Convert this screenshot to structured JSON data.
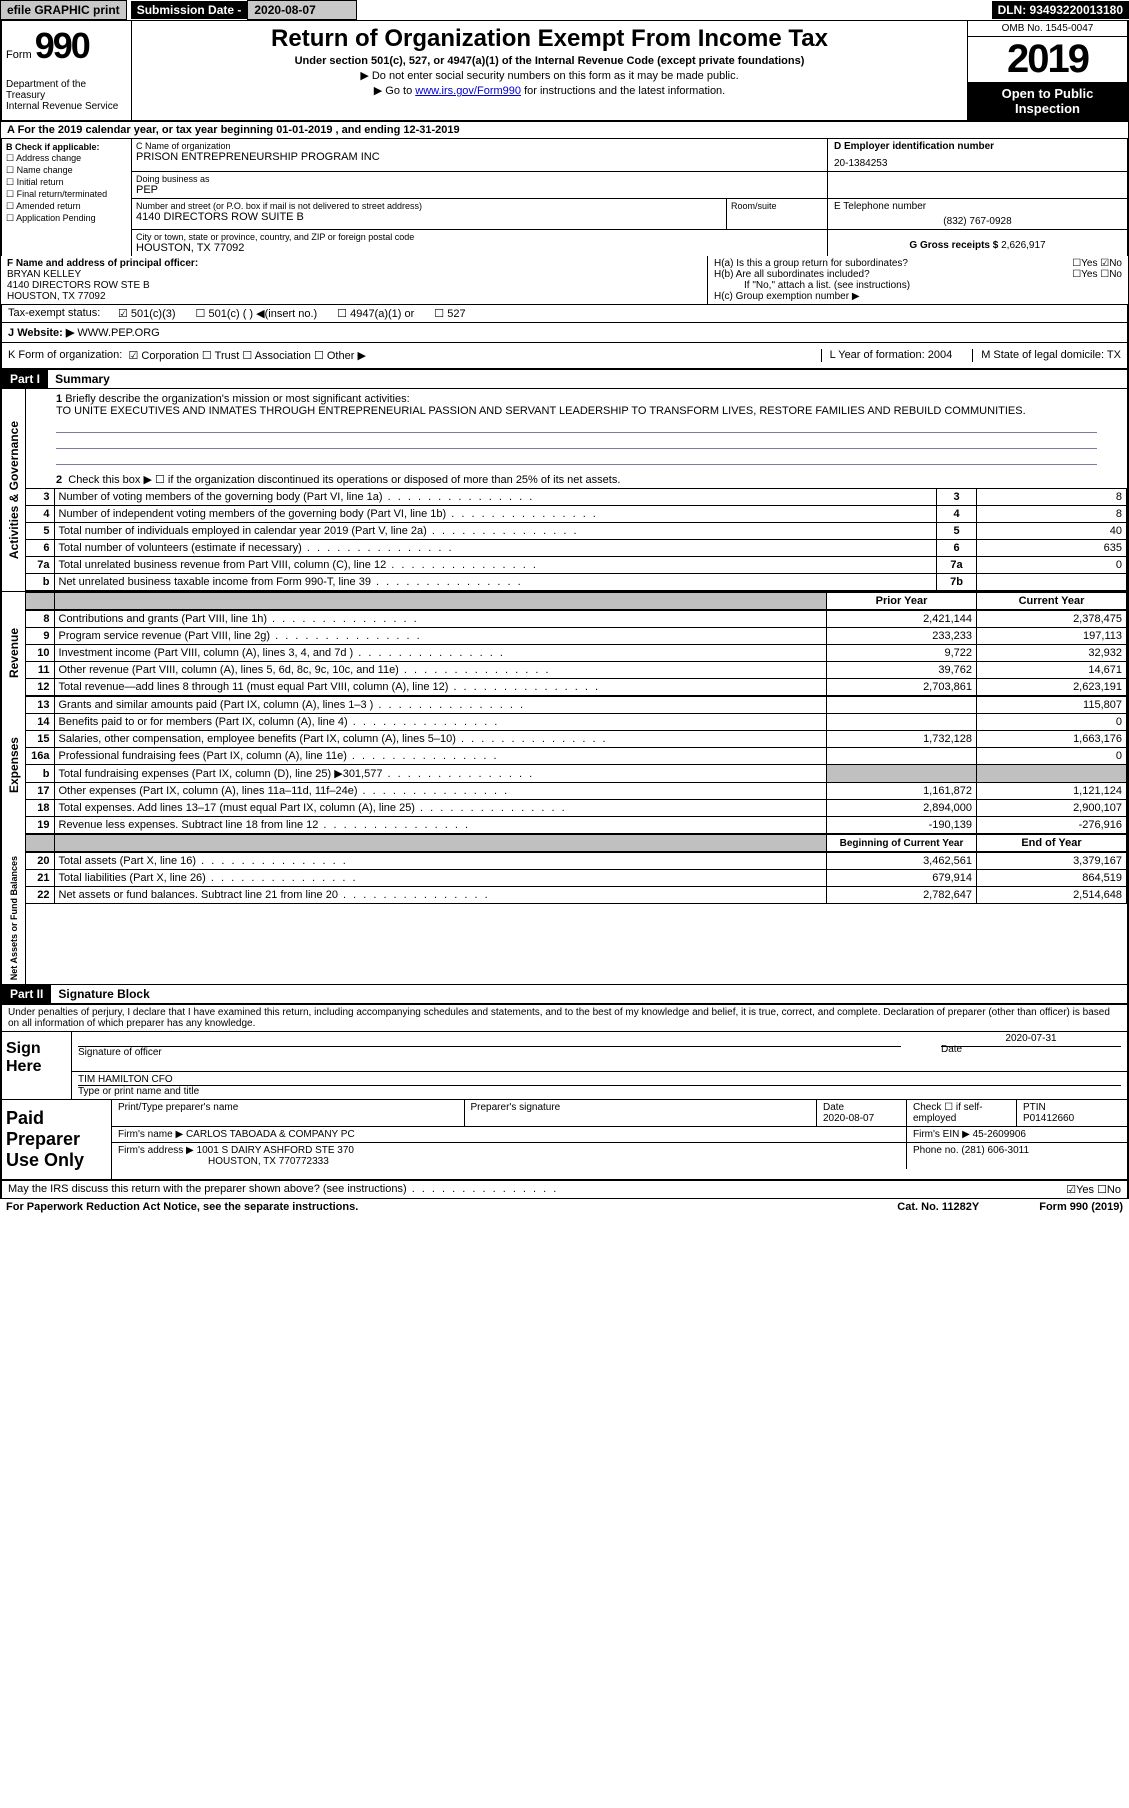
{
  "topbar": {
    "efile": "efile GRAPHIC print",
    "subdate_label": "Submission Date - ",
    "subdate": "2020-08-07",
    "dln": "DLN: 93493220013180"
  },
  "header": {
    "form_prefix": "Form",
    "form_num": "990",
    "dept1": "Department of the Treasury",
    "dept2": "Internal Revenue Service",
    "title": "Return of Organization Exempt From Income Tax",
    "sub1": "Under section 501(c), 527, or 4947(a)(1) of the Internal Revenue Code (except private foundations)",
    "sub2": "▶ Do not enter social security numbers on this form as it may be made public.",
    "sub3_pre": "▶ Go to ",
    "sub3_link": "www.irs.gov/Form990",
    "sub3_post": " for instructions and the latest information.",
    "omb": "OMB No. 1545-0047",
    "year": "2019",
    "inspect1": "Open to Public",
    "inspect2": "Inspection"
  },
  "row_a": "A For the 2019 calendar year, or tax year beginning 01-01-2019    , and ending 12-31-2019",
  "b": {
    "label": "B Check if applicable:",
    "opts": [
      "☐ Address change",
      "☐ Name change",
      "☐ Initial return",
      "☐ Final return/terminated",
      "☐ Amended return",
      "☐ Application Pending"
    ]
  },
  "c": {
    "name_label": "C Name of organization",
    "name": "PRISON ENTREPRENEURSHIP PROGRAM INC",
    "dba_label": "Doing business as",
    "dba": "PEP",
    "addr_label": "Number and street (or P.O. box if mail is not delivered to street address)",
    "addr": "4140 DIRECTORS ROW SUITE B",
    "room_label": "Room/suite",
    "city_label": "City or town, state or province, country, and ZIP or foreign postal code",
    "city": "HOUSTON, TX  77092"
  },
  "d": {
    "label": "D Employer identification number",
    "val": "20-1384253"
  },
  "e": {
    "label": "E Telephone number",
    "val": "(832) 767-0928"
  },
  "g": {
    "label": "G Gross receipts $",
    "val": "2,626,917"
  },
  "f": {
    "label": "F  Name and address of principal officer:",
    "name": "BRYAN KELLEY",
    "addr1": "4140 DIRECTORS ROW STE B",
    "addr2": "HOUSTON, TX  77092"
  },
  "h": {
    "a": "H(a)  Is this a group return for subordinates?",
    "a_yn": "☐Yes ☑No",
    "b": "H(b)  Are all subordinates included?",
    "b_yn": "☐Yes  ☐No",
    "note": "If \"No,\" attach a list. (see instructions)",
    "c": "H(c)  Group exemption number ▶"
  },
  "tax_status": {
    "label": "Tax-exempt status:",
    "opt1": "☑ 501(c)(3)",
    "opt2": "☐  501(c) (  ) ◀(insert no.)",
    "opt3": "☐  4947(a)(1) or",
    "opt4": "☐ 527"
  },
  "j": {
    "label": "J",
    "text": "Website: ▶",
    "val": "WWW.PEP.ORG"
  },
  "k": {
    "label": "K Form of organization:",
    "opts": "☑ Corporation  ☐ Trust  ☐ Association  ☐ Other ▶",
    "l": "L Year of formation: 2004",
    "m": "M State of legal domicile: TX"
  },
  "part1": {
    "hdr": "Part I",
    "title": "Summary"
  },
  "mission": {
    "num": "1",
    "label": "Briefly describe the organization's mission or most significant activities:",
    "text": "TO UNITE EXECUTIVES AND INMATES THROUGH ENTREPRENEURIAL PASSION AND SERVANT LEADERSHIP TO TRANSFORM LIVES, RESTORE FAMILIES AND REBUILD COMMUNITIES."
  },
  "line2": "Check this box ▶ ☐  if the organization discontinued its operations or disposed of more than 25% of its net assets.",
  "gov_rows": [
    {
      "n": "3",
      "d": "Number of voting members of the governing body (Part VI, line 1a)",
      "box": "3",
      "v": "8"
    },
    {
      "n": "4",
      "d": "Number of independent voting members of the governing body (Part VI, line 1b)",
      "box": "4",
      "v": "8"
    },
    {
      "n": "5",
      "d": "Total number of individuals employed in calendar year 2019 (Part V, line 2a)",
      "box": "5",
      "v": "40"
    },
    {
      "n": "6",
      "d": "Total number of volunteers (estimate if necessary)",
      "box": "6",
      "v": "635"
    },
    {
      "n": "7a",
      "d": "Total unrelated business revenue from Part VIII, column (C), line 12",
      "box": "7a",
      "v": "0"
    },
    {
      "n": "b",
      "d": "Net unrelated business taxable income from Form 990-T, line 39",
      "box": "7b",
      "v": ""
    }
  ],
  "py_hdr": "Prior Year",
  "cy_hdr": "Current Year",
  "rev_rows": [
    {
      "n": "8",
      "d": "Contributions and grants (Part VIII, line 1h)",
      "py": "2,421,144",
      "cy": "2,378,475"
    },
    {
      "n": "9",
      "d": "Program service revenue (Part VIII, line 2g)",
      "py": "233,233",
      "cy": "197,113"
    },
    {
      "n": "10",
      "d": "Investment income (Part VIII, column (A), lines 3, 4, and 7d )",
      "py": "9,722",
      "cy": "32,932"
    },
    {
      "n": "11",
      "d": "Other revenue (Part VIII, column (A), lines 5, 6d, 8c, 9c, 10c, and 11e)",
      "py": "39,762",
      "cy": "14,671"
    },
    {
      "n": "12",
      "d": "Total revenue—add lines 8 through 11 (must equal Part VIII, column (A), line 12)",
      "py": "2,703,861",
      "cy": "2,623,191"
    }
  ],
  "exp_rows": [
    {
      "n": "13",
      "d": "Grants and similar amounts paid (Part IX, column (A), lines 1–3 )",
      "py": "",
      "cy": "115,807"
    },
    {
      "n": "14",
      "d": "Benefits paid to or for members (Part IX, column (A), line 4)",
      "py": "",
      "cy": "0"
    },
    {
      "n": "15",
      "d": "Salaries, other compensation, employee benefits (Part IX, column (A), lines 5–10)",
      "py": "1,732,128",
      "cy": "1,663,176"
    },
    {
      "n": "16a",
      "d": "Professional fundraising fees (Part IX, column (A), line 11e)",
      "py": "",
      "cy": "0"
    },
    {
      "n": "b",
      "d": "Total fundraising expenses (Part IX, column (D), line 25) ▶301,577",
      "py": "gray",
      "cy": "gray"
    },
    {
      "n": "17",
      "d": "Other expenses (Part IX, column (A), lines 11a–11d, 11f–24e)",
      "py": "1,161,872",
      "cy": "1,121,124"
    },
    {
      "n": "18",
      "d": "Total expenses. Add lines 13–17 (must equal Part IX, column (A), line 25)",
      "py": "2,894,000",
      "cy": "2,900,107"
    },
    {
      "n": "19",
      "d": "Revenue less expenses. Subtract line 18 from line 12",
      "py": "-190,139",
      "cy": "-276,916"
    }
  ],
  "boy_hdr": "Beginning of Current Year",
  "eoy_hdr": "End of Year",
  "net_rows": [
    {
      "n": "20",
      "d": "Total assets (Part X, line 16)",
      "py": "3,462,561",
      "cy": "3,379,167"
    },
    {
      "n": "21",
      "d": "Total liabilities (Part X, line 26)",
      "py": "679,914",
      "cy": "864,519"
    },
    {
      "n": "22",
      "d": "Net assets or fund balances. Subtract line 21 from line 20",
      "py": "2,782,647",
      "cy": "2,514,648"
    }
  ],
  "part2": {
    "hdr": "Part II",
    "title": "Signature Block"
  },
  "penalty": "Under penalties of perjury, I declare that I have examined this return, including accompanying schedules and statements, and to the best of my knowledge and belief, it is true, correct, and complete. Declaration of preparer (other than officer) is based on all information of which preparer has any knowledge.",
  "sign": {
    "label": "Sign Here",
    "sig_label": "Signature of officer",
    "date_label": "Date",
    "date": "2020-07-31",
    "name": "TIM HAMILTON  CFO",
    "name_label": "Type or print name and title"
  },
  "prep": {
    "label": "Paid Preparer Use Only",
    "h1": "Print/Type preparer's name",
    "h2": "Preparer's signature",
    "h3": "Date",
    "date": "2020-08-07",
    "h4": "Check ☐ if self-employed",
    "h5": "PTIN",
    "ptin": "P01412660",
    "firm_label": "Firm's name    ▶",
    "firm": "CARLOS TABOADA & COMPANY PC",
    "ein_label": "Firm's EIN ▶",
    "ein": "45-2609906",
    "addr_label": "Firm's address ▶",
    "addr1": "1001 S DAIRY ASHFORD STE 370",
    "addr2": "HOUSTON, TX  770772333",
    "phone_label": "Phone no.",
    "phone": "(281) 606-3011"
  },
  "discuss": "May the IRS discuss this return with the preparer shown above? (see instructions)",
  "discuss_yn": "☑Yes  ☐No",
  "paperwork": "For Paperwork Reduction Act Notice, see the separate instructions.",
  "cat": "Cat. No. 11282Y",
  "form_foot": "Form 990 (2019)",
  "vlabels": {
    "gov": "Activities & Governance",
    "rev": "Revenue",
    "exp": "Expenses",
    "net": "Net Assets or Fund Balances"
  }
}
